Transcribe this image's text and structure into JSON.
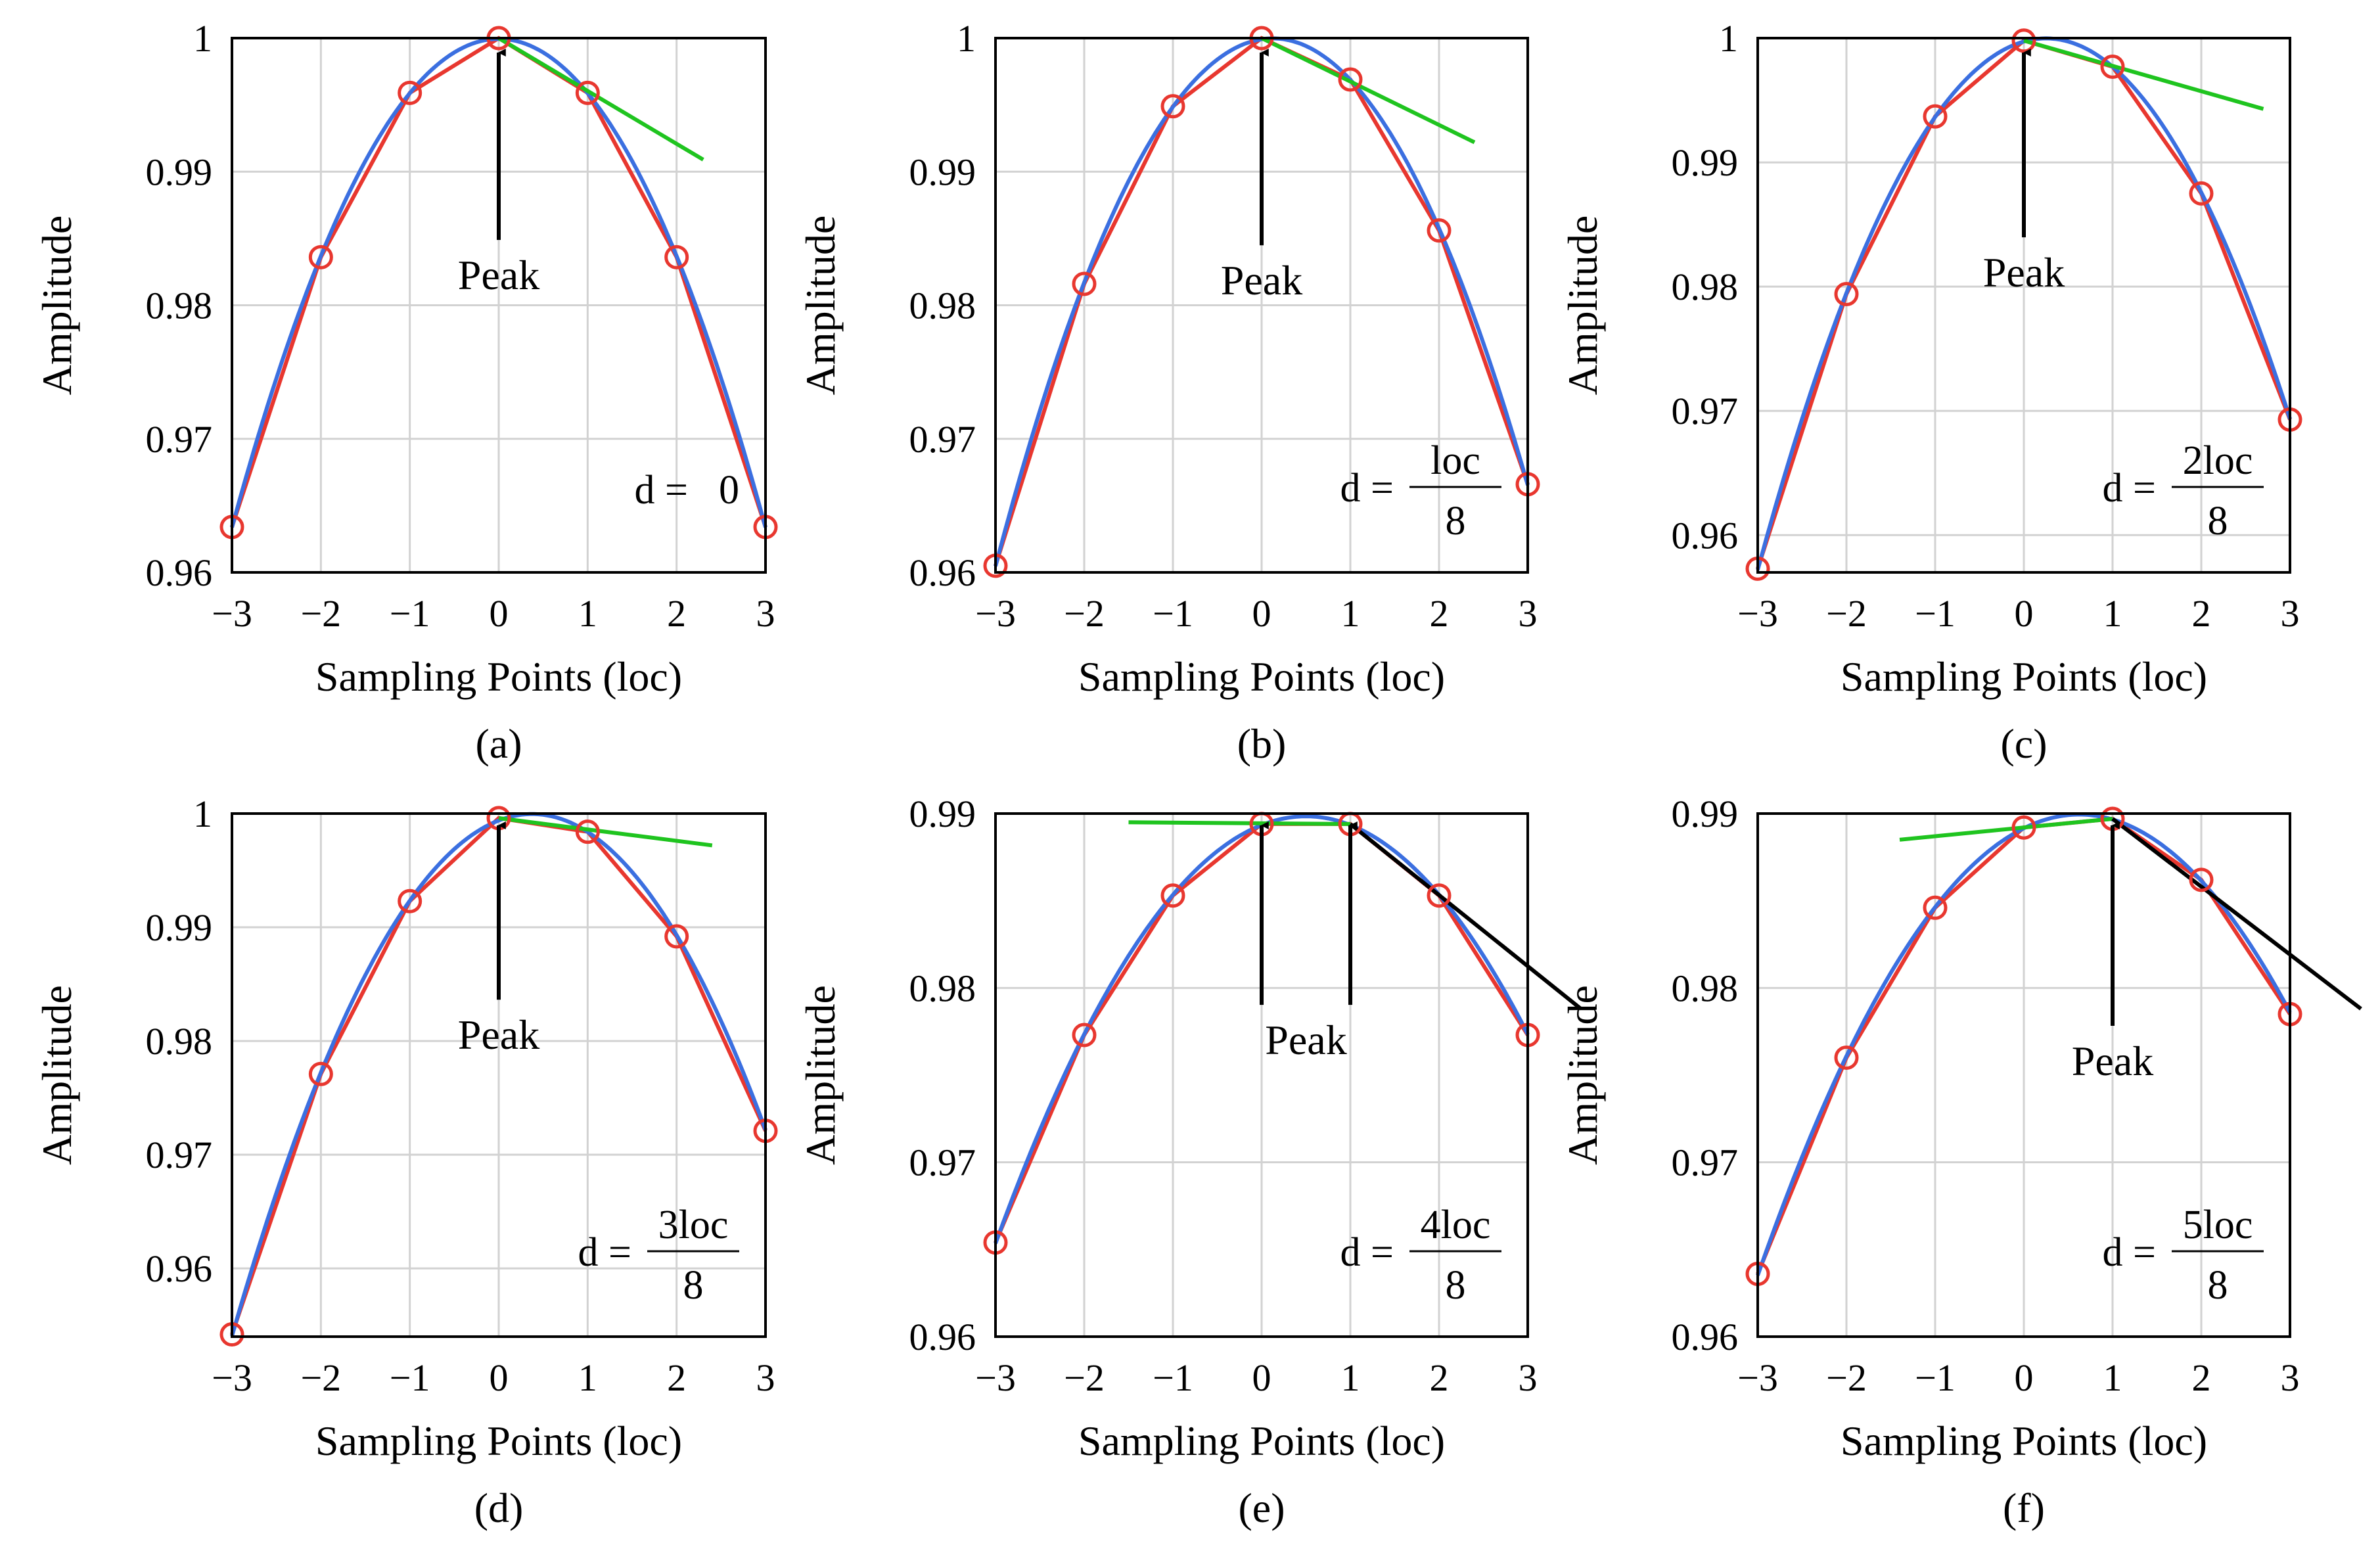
{
  "chart_data": [
    {
      "type": "line",
      "subplot_label": "(a)",
      "xlabel": "Sampling Points (loc)",
      "ylabel": "Amplitude",
      "x_ticks": [
        "−3",
        "−2",
        "−1",
        "0",
        "1",
        "2",
        "3"
      ],
      "y_ticks": [
        "0.96",
        "0.97",
        "0.98",
        "0.99",
        "1"
      ],
      "xlim": [
        -3,
        3
      ],
      "ylim": [
        0.96,
        1.0
      ],
      "grid": true,
      "series": [
        {
          "name": "samples",
          "color": "#e8372f",
          "x": [
            -3,
            -2,
            -1,
            0,
            1,
            2,
            3
          ],
          "y": [
            0.9634,
            0.9836,
            0.9959,
            1.0,
            0.9959,
            0.9836,
            0.9634
          ]
        },
        {
          "name": "fitted curve",
          "color": "#3b6fe0",
          "peak_x": 0.0
        },
        {
          "name": "tangent",
          "color": "#1fc41f",
          "x": [
            0,
            2.3
          ],
          "y": [
            1.0,
            0.9909
          ]
        }
      ],
      "annotation": {
        "text": "Peak",
        "arrow_x": [
          0
        ],
        "text_y": 0.9812
      },
      "d_label": {
        "prefix": "d =",
        "numerator": "0",
        "denominator": ""
      }
    },
    {
      "type": "line",
      "subplot_label": "(b)",
      "xlabel": "Sampling Points (loc)",
      "ylabel": "Amplitude",
      "x_ticks": [
        "−3",
        "−2",
        "−1",
        "0",
        "1",
        "2",
        "3"
      ],
      "y_ticks": [
        "0.96",
        "0.97",
        "0.98",
        "0.99",
        "1"
      ],
      "xlim": [
        -3,
        3
      ],
      "ylim": [
        0.96,
        1.0
      ],
      "grid": true,
      "series": [
        {
          "name": "samples",
          "color": "#e8372f",
          "x": [
            -3,
            -2,
            -1,
            0,
            1,
            2,
            3
          ],
          "y": [
            0.9605,
            0.9816,
            0.9949,
            1.0,
            0.9969,
            0.9856,
            0.9666
          ]
        },
        {
          "name": "fitted curve",
          "color": "#3b6fe0",
          "peak_x": 0.125
        },
        {
          "name": "tangent",
          "color": "#1fc41f",
          "x": [
            0,
            2.4
          ],
          "y": [
            1.0,
            0.9922
          ]
        }
      ],
      "annotation": {
        "text": "Peak",
        "arrow_x": [
          0
        ],
        "text_y": 0.9808
      },
      "d_label": {
        "prefix": "d =",
        "numerator": "loc",
        "denominator": "8"
      }
    },
    {
      "type": "line",
      "subplot_label": "(c)",
      "xlabel": "Sampling Points (loc)",
      "ylabel": "Amplitude",
      "x_ticks": [
        "−3",
        "−2",
        "−1",
        "0",
        "1",
        "2",
        "3"
      ],
      "y_ticks": [
        "0.96",
        "0.97",
        "0.98",
        "0.99",
        "1"
      ],
      "xlim": [
        -3,
        3
      ],
      "ylim": [
        0.957,
        1.0
      ],
      "grid": true,
      "series": [
        {
          "name": "samples",
          "color": "#e8372f",
          "x": [
            -3,
            -2,
            -1,
            0,
            1,
            2,
            3
          ],
          "y": [
            0.9573,
            0.9794,
            0.9937,
            0.9998,
            0.9977,
            0.9875,
            0.9693
          ]
        },
        {
          "name": "fitted curve",
          "color": "#3b6fe0",
          "peak_x": 0.25
        },
        {
          "name": "tangent",
          "color": "#1fc41f",
          "x": [
            0,
            2.7
          ],
          "y": [
            0.9998,
            0.9943
          ]
        }
      ],
      "annotation": {
        "text": "Peak",
        "arrow_x": [
          0
        ],
        "text_y": 0.98
      },
      "d_label": {
        "prefix": "d =",
        "numerator": "2loc",
        "denominator": "8"
      }
    },
    {
      "type": "line",
      "subplot_label": "(d)",
      "xlabel": "Sampling Points (loc)",
      "ylabel": "Amplitude",
      "x_ticks": [
        "−3",
        "−2",
        "−1",
        "0",
        "1",
        "2",
        "3"
      ],
      "y_ticks": [
        "0.96",
        "0.97",
        "0.98",
        "0.99",
        "1"
      ],
      "xlim": [
        -3,
        3
      ],
      "ylim": [
        0.954,
        1.0
      ],
      "grid": true,
      "series": [
        {
          "name": "samples",
          "color": "#e8372f",
          "x": [
            -3,
            -2,
            -1,
            0,
            1,
            2,
            3
          ],
          "y": [
            0.9542,
            0.9771,
            0.9923,
            0.9996,
            0.9984,
            0.9892,
            0.9721
          ]
        },
        {
          "name": "fitted curve",
          "color": "#3b6fe0",
          "peak_x": 0.375
        },
        {
          "name": "tangent",
          "color": "#1fc41f",
          "x": [
            0,
            2.4
          ],
          "y": [
            0.9996,
            0.9972
          ]
        }
      ],
      "annotation": {
        "text": "Peak",
        "arrow_x": [
          0
        ],
        "text_y": 0.9793
      },
      "d_label": {
        "prefix": "d =",
        "numerator": "3loc",
        "denominator": "8"
      }
    },
    {
      "type": "line",
      "subplot_label": "(e)",
      "xlabel": "Sampling Points (loc)",
      "ylabel": "Amplitude",
      "x_ticks": [
        "−3",
        "−2",
        "−1",
        "0",
        "1",
        "2",
        "3"
      ],
      "y_ticks": [
        "0.96",
        "0.97",
        "0.98",
        "0.99"
      ],
      "xlim": [
        -3,
        3
      ],
      "ylim": [
        0.96,
        0.99
      ],
      "grid": true,
      "series": [
        {
          "name": "samples",
          "color": "#e8372f",
          "x": [
            -3,
            -2,
            -1,
            0,
            1,
            2,
            3
          ],
          "y": [
            0.9654,
            0.9773,
            0.9853,
            0.9894,
            0.9894,
            0.9853,
            0.9773
          ]
        },
        {
          "name": "fitted curve",
          "color": "#3b6fe0",
          "peak_x": 0.5
        },
        {
          "name": "tangent",
          "color": "#1fc41f",
          "x": [
            -1.5,
            1
          ],
          "y": [
            0.9895,
            0.9894
          ]
        },
        {
          "name": "tangent",
          "color": "#000000",
          "x": [
            1,
            3.6
          ],
          "y": [
            0.9894,
            0.9788
          ]
        }
      ],
      "annotation": {
        "text": "Peak",
        "arrow_x": [
          0,
          1
        ],
        "text_y": 0.9762
      },
      "d_label": {
        "prefix": "d =",
        "numerator": "4loc",
        "denominator": "8"
      }
    },
    {
      "type": "line",
      "subplot_label": "(f)",
      "xlabel": "Sampling Points (loc)",
      "ylabel": "Amplitude",
      "x_ticks": [
        "−3",
        "−2",
        "−1",
        "0",
        "1",
        "2",
        "3"
      ],
      "y_ticks": [
        "0.96",
        "0.97",
        "0.98",
        "0.99"
      ],
      "xlim": [
        -3,
        3
      ],
      "ylim": [
        0.96,
        0.99
      ],
      "grid": true,
      "series": [
        {
          "name": "samples",
          "color": "#e8372f",
          "x": [
            -3,
            -2,
            -1,
            0,
            1,
            2,
            3
          ],
          "y": [
            0.9636,
            0.976,
            0.9846,
            0.9892,
            0.9897,
            0.9862,
            0.9785
          ]
        },
        {
          "name": "fitted curve",
          "color": "#3b6fe0",
          "peak_x": 0.625
        },
        {
          "name": "tangent",
          "color": "#1fc41f",
          "x": [
            -1.4,
            1
          ],
          "y": [
            0.9885,
            0.9897
          ]
        },
        {
          "name": "tangent",
          "color": "#000000",
          "x": [
            1,
            3.8
          ],
          "y": [
            0.9897,
            0.9788
          ]
        }
      ],
      "annotation": {
        "text": "Peak",
        "arrow_x": [
          1
        ],
        "text_y": 0.975
      },
      "d_label": {
        "prefix": "d =",
        "numerator": "5loc",
        "denominator": "8"
      }
    }
  ]
}
